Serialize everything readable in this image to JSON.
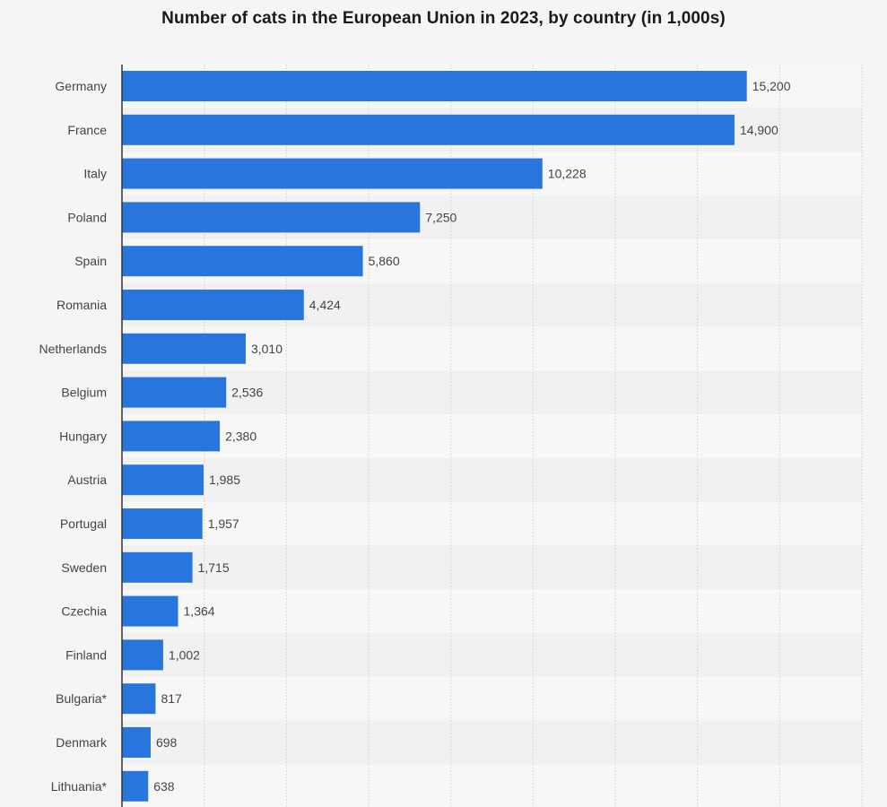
{
  "chart_data": {
    "type": "bar",
    "orientation": "horizontal",
    "title": "Number of cats in the European Union in 2023, by country (in 1,000s)",
    "categories": [
      "Germany",
      "France",
      "Italy",
      "Poland",
      "Spain",
      "Romania",
      "Netherlands",
      "Belgium",
      "Hungary",
      "Austria",
      "Portugal",
      "Sweden",
      "Czechia",
      "Finland",
      "Bulgaria*",
      "Denmark",
      "Lithuania*"
    ],
    "values": [
      15200,
      14900,
      10228,
      7250,
      5860,
      4424,
      3010,
      2536,
      2380,
      1985,
      1957,
      1715,
      1364,
      1002,
      817,
      698,
      638
    ],
    "value_labels": [
      "15,200",
      "14,900",
      "10,228",
      "7,250",
      "5,860",
      "4,424",
      "3,010",
      "2,536",
      "2,380",
      "1,985",
      "1,957",
      "1,715",
      "1,364",
      "1,002",
      "817",
      "698",
      "638"
    ],
    "xlim": [
      0,
      18000
    ],
    "grid": true,
    "bar_color": "#2876dd",
    "xlabel": "",
    "ylabel": ""
  }
}
